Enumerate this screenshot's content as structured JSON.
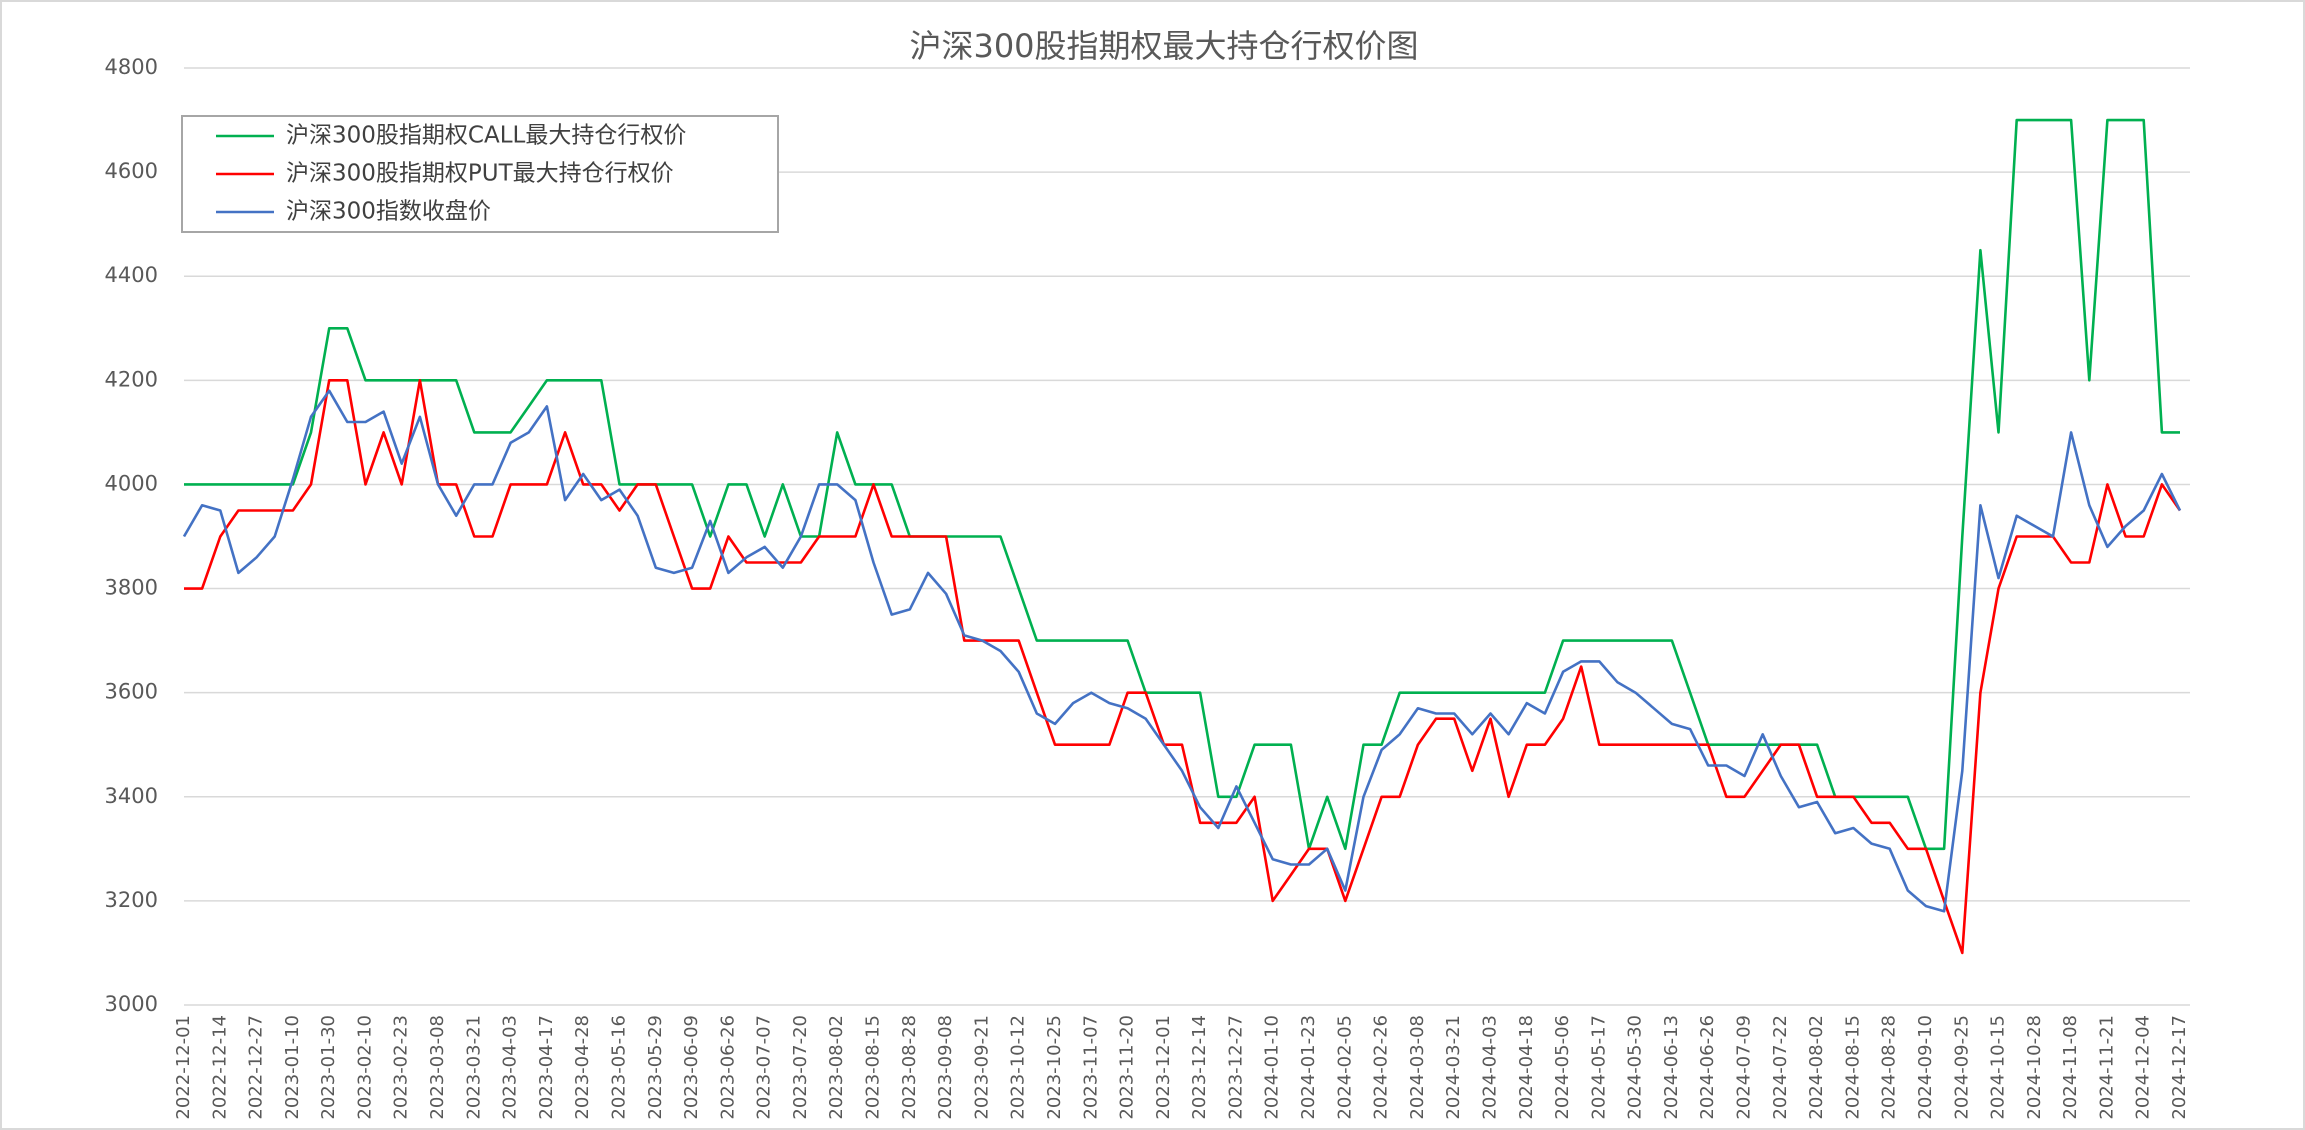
{
  "chart_data": {
    "type": "line",
    "title": "沪深300股指期权最大持仓行权价图",
    "categories": [
      "2022-12-01",
      null,
      "2022-12-14",
      null,
      "2022-12-27",
      null,
      "2023-01-10",
      null,
      "2023-01-30",
      null,
      "2023-02-10",
      null,
      "2023-02-23",
      null,
      "2023-03-08",
      null,
      "2023-03-21",
      null,
      "2023-04-03",
      null,
      "2023-04-17",
      null,
      "2023-04-28",
      null,
      "2023-05-16",
      null,
      "2023-05-29",
      null,
      "2023-06-09",
      null,
      "2023-06-26",
      null,
      "2023-07-07",
      null,
      "2023-07-20",
      null,
      "2023-08-02",
      null,
      "2023-08-15",
      null,
      "2023-08-28",
      null,
      "2023-09-08",
      null,
      "2023-09-21",
      null,
      "2023-10-12",
      null,
      "2023-10-25",
      null,
      "2023-11-07",
      null,
      "2023-11-20",
      null,
      "2023-12-01",
      null,
      "2023-12-14",
      null,
      "2023-12-27",
      null,
      "2024-01-10",
      null,
      "2024-01-23",
      null,
      "2024-02-05",
      null,
      "2024-02-26",
      null,
      "2024-03-08",
      null,
      "2024-03-21",
      null,
      "2024-04-03",
      null,
      "2024-04-18",
      null,
      "2024-05-06",
      null,
      "2024-05-17",
      null,
      "2024-05-30",
      null,
      "2024-06-13",
      null,
      "2024-06-26",
      null,
      "2024-07-09",
      null,
      "2024-07-22",
      null,
      "2024-08-02",
      null,
      "2024-08-15",
      null,
      "2024-08-28",
      null,
      "2024-09-10",
      null,
      "2024-09-25",
      null,
      "2024-10-15",
      null,
      "2024-10-28",
      null,
      "2024-11-08",
      null,
      "2024-11-21",
      null,
      "2024-12-04",
      null,
      "2024-12-17"
    ],
    "series": [
      {
        "name": "沪深300股指期权CALL最大持仓行权价",
        "color": "#00b050",
        "values": [
          4000,
          4000,
          4000,
          4000,
          4000,
          4000,
          4000,
          4100,
          4300,
          4300,
          4200,
          4200,
          4200,
          4200,
          4200,
          4200,
          4100,
          4100,
          4100,
          4150,
          4200,
          4200,
          4200,
          4200,
          4000,
          4000,
          4000,
          4000,
          4000,
          3900,
          4000,
          4000,
          3900,
          4000,
          3900,
          3900,
          4100,
          4000,
          4000,
          4000,
          3900,
          3900,
          3900,
          3900,
          3900,
          3900,
          3800,
          3700,
          3700,
          3700,
          3700,
          3700,
          3700,
          3600,
          3600,
          3600,
          3600,
          3400,
          3400,
          3500,
          3500,
          3500,
          3300,
          3400,
          3300,
          3500,
          3500,
          3600,
          3600,
          3600,
          3600,
          3600,
          3600,
          3600,
          3600,
          3600,
          3700,
          3700,
          3700,
          3700,
          3700,
          3700,
          3700,
          3600,
          3500,
          3500,
          3500,
          3500,
          3500,
          3500,
          3500,
          3400,
          3400,
          3400,
          3400,
          3400,
          3300,
          3300,
          3900,
          4450,
          4100,
          4700,
          4700,
          4700,
          4700,
          4200,
          4700,
          4700,
          4700,
          4100,
          4100
        ]
      },
      {
        "name": "沪深300股指期权PUT最大持仓行权价",
        "color": "#ff0000",
        "values": [
          3800,
          3800,
          3900,
          3950,
          3950,
          3950,
          3950,
          4000,
          4200,
          4200,
          4000,
          4100,
          4000,
          4200,
          4000,
          4000,
          3900,
          3900,
          4000,
          4000,
          4000,
          4100,
          4000,
          4000,
          3950,
          4000,
          4000,
          3900,
          3800,
          3800,
          3900,
          3850,
          3850,
          3850,
          3850,
          3900,
          3900,
          3900,
          4000,
          3900,
          3900,
          3900,
          3900,
          3700,
          3700,
          3700,
          3700,
          3600,
          3500,
          3500,
          3500,
          3500,
          3600,
          3600,
          3500,
          3500,
          3350,
          3350,
          3350,
          3400,
          3200,
          3250,
          3300,
          3300,
          3200,
          3300,
          3400,
          3400,
          3500,
          3550,
          3550,
          3450,
          3550,
          3400,
          3500,
          3500,
          3550,
          3650,
          3500,
          3500,
          3500,
          3500,
          3500,
          3500,
          3500,
          3400,
          3400,
          3450,
          3500,
          3500,
          3400,
          3400,
          3400,
          3350,
          3350,
          3300,
          3300,
          3200,
          3100,
          3600,
          3800,
          3900,
          3900,
          3900,
          3850,
          3850,
          4000,
          3900,
          3900,
          4000,
          3950
        ]
      },
      {
        "name": "沪深300指数收盘价",
        "color": "#4472c4",
        "values": [
          3900,
          3960,
          3950,
          3830,
          3860,
          3900,
          4010,
          4130,
          4180,
          4120,
          4120,
          4140,
          4040,
          4130,
          4000,
          3940,
          4000,
          4000,
          4080,
          4100,
          4150,
          3970,
          4020,
          3970,
          3990,
          3940,
          3840,
          3830,
          3840,
          3930,
          3830,
          3860,
          3880,
          3840,
          3900,
          4000,
          4000,
          3970,
          3850,
          3750,
          3760,
          3830,
          3790,
          3710,
          3700,
          3680,
          3640,
          3560,
          3540,
          3580,
          3600,
          3580,
          3570,
          3550,
          3500,
          3450,
          3380,
          3340,
          3420,
          3350,
          3280,
          3270,
          3270,
          3300,
          3220,
          3400,
          3490,
          3520,
          3570,
          3560,
          3560,
          3520,
          3560,
          3520,
          3580,
          3560,
          3640,
          3660,
          3660,
          3620,
          3600,
          3570,
          3540,
          3530,
          3460,
          3460,
          3440,
          3520,
          3440,
          3380,
          3390,
          3330,
          3340,
          3310,
          3300,
          3220,
          3190,
          3180,
          3450,
          3960,
          3820,
          3940,
          3920,
          3900,
          4100,
          3960,
          3880,
          3920,
          3950,
          4020,
          3950
        ]
      }
    ],
    "ylim": [
      3000,
      4800
    ],
    "yticks": [
      3000,
      3200,
      3400,
      3600,
      3800,
      4000,
      4200,
      4400,
      4600,
      4800
    ],
    "grid": true,
    "legend": "upper left"
  }
}
